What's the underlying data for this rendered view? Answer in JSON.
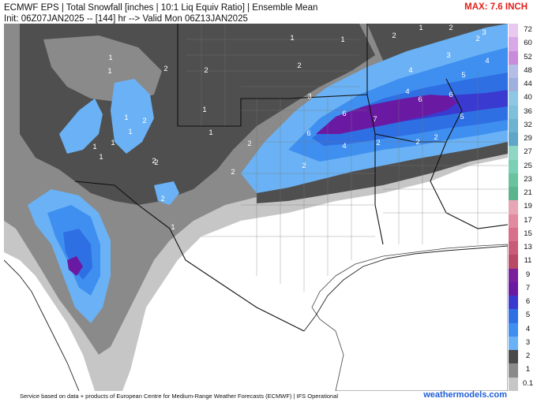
{
  "header": {
    "title": "ECMWF EPS | Total Snowfall [inches | 10:1 Liq Equiv Ratio] | Ensemble Mean",
    "init_line": "Init: 06Z07JAN2025 -- [144] hr --> Valid Mon 06Z13JAN2025",
    "max_label": "MAX: 7.6 INCH"
  },
  "footer": {
    "attribution": "Service based on data + products of European Centre for Medium-Range Weather Forecasts (ECMWF) | IFS Operational",
    "credit": "weathermodels.com"
  },
  "legend": {
    "levels": [
      {
        "label": "72",
        "color": "#e9c9ef"
      },
      {
        "label": "60",
        "color": "#d9a8e6"
      },
      {
        "label": "52",
        "color": "#c98bdc"
      },
      {
        "label": "48",
        "color": "#b3bde6"
      },
      {
        "label": "44",
        "color": "#9fb0de"
      },
      {
        "label": "40",
        "color": "#8ec6e6"
      },
      {
        "label": "36",
        "color": "#7ec0dc"
      },
      {
        "label": "32",
        "color": "#6eb3d1"
      },
      {
        "label": "29",
        "color": "#5fa6c8"
      },
      {
        "label": "27",
        "color": "#8fd6c4"
      },
      {
        "label": "25",
        "color": "#7acfb4"
      },
      {
        "label": "23",
        "color": "#69c39f"
      },
      {
        "label": "21",
        "color": "#5bb58c"
      },
      {
        "label": "19",
        "color": "#e8a5b5"
      },
      {
        "label": "17",
        "color": "#e18aa0"
      },
      {
        "label": "15",
        "color": "#d8708b"
      },
      {
        "label": "13",
        "color": "#c95a78"
      },
      {
        "label": "11",
        "color": "#b84866"
      },
      {
        "label": "9",
        "color": "#7a1f9e"
      },
      {
        "label": "7",
        "color": "#6a1aa2"
      },
      {
        "label": "6",
        "color": "#3a3ad0"
      },
      {
        "label": "5",
        "color": "#2f6fe4"
      },
      {
        "label": "4",
        "color": "#3f8ff0"
      },
      {
        "label": "3",
        "color": "#6ab2f5"
      },
      {
        "label": "2",
        "color": "#4a4a4a"
      },
      {
        "label": "1",
        "color": "#8a8a8a"
      },
      {
        "label": "0.1",
        "color": "#c6c6c6"
      }
    ]
  },
  "map_values": [
    {
      "text": "1"
    },
    {
      "text": "2"
    },
    {
      "text": "1"
    },
    {
      "text": "1"
    },
    {
      "text": "2"
    },
    {
      "text": "1"
    },
    {
      "text": "2"
    },
    {
      "text": "1"
    },
    {
      "text": "1"
    },
    {
      "text": "2"
    },
    {
      "text": "2"
    },
    {
      "text": "3"
    },
    {
      "text": "2"
    },
    {
      "text": "4"
    },
    {
      "text": "3"
    },
    {
      "text": "4"
    },
    {
      "text": "5"
    },
    {
      "text": "6"
    },
    {
      "text": "6"
    },
    {
      "text": "6"
    },
    {
      "text": "7"
    },
    {
      "text": "5"
    },
    {
      "text": "6"
    },
    {
      "text": "4"
    },
    {
      "text": "2"
    },
    {
      "text": "2"
    },
    {
      "text": "2"
    },
    {
      "text": "2"
    },
    {
      "text": "2"
    },
    {
      "text": "1"
    },
    {
      "text": "1"
    },
    {
      "text": "2"
    },
    {
      "text": "1"
    },
    {
      "text": "2"
    },
    {
      "text": "1"
    },
    {
      "text": "1"
    },
    {
      "text": "1"
    },
    {
      "text": "2"
    },
    {
      "text": "2"
    },
    {
      "text": "3"
    },
    {
      "text": "4"
    },
    {
      "text": "1"
    },
    {
      "text": "2"
    }
  ]
}
